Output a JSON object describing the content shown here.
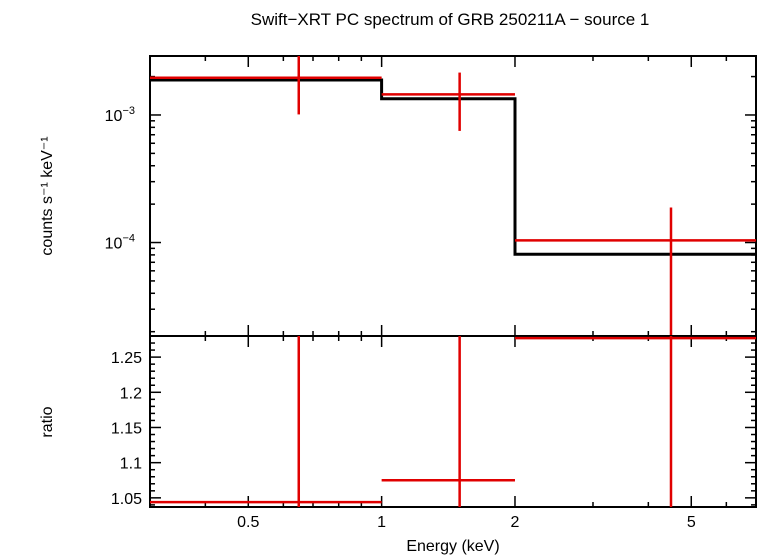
{
  "chart_data": [
    {
      "type": "line",
      "title": "Swift−XRT PC spectrum of GRB 250211A − source 1",
      "ylabel_html": "counts s⁻¹ keV⁻¹",
      "ylabel": "counts s⁻¹ keV⁻¹",
      "xscale": "log",
      "yscale": "log",
      "xlim": [
        0.3,
        7.0
      ],
      "ylim": [
        1.85e-05,
        0.0029
      ],
      "ytick_labels": [
        {
          "value": 0.001,
          "base": "10",
          "exp": "−3"
        },
        {
          "value": 0.0001,
          "base": "10",
          "exp": "−4"
        }
      ],
      "series": [
        {
          "role": "model",
          "color": "#000000",
          "steps": [
            {
              "x0": 0.3,
              "x1": 1.0,
              "y": 0.00188
            },
            {
              "x0": 1.0,
              "x1": 2.0,
              "y": 0.00134
            },
            {
              "x0": 2.0,
              "x1": 7.0,
              "y": 8.1e-05
            }
          ]
        },
        {
          "role": "data",
          "color": "#e00000",
          "points": [
            {
              "x": 0.65,
              "xlo": 0.3,
              "xhi": 1.0,
              "y": 0.00196,
              "ylo": 0.00101,
              "yhi": 0.0029
            },
            {
              "x": 1.5,
              "xlo": 1.0,
              "xhi": 2.0,
              "y": 0.00145,
              "ylo": 0.00075,
              "yhi": 0.00215
            },
            {
              "x": 4.5,
              "xlo": 2.0,
              "xhi": 7.0,
              "y": 0.000104,
              "ylo": 1.85e-05,
              "yhi": 0.000188
            }
          ]
        }
      ]
    },
    {
      "type": "scatter",
      "ylabel": "ratio",
      "xlabel": "Energy (keV)",
      "xscale": "log",
      "xlim": [
        0.3,
        7.0
      ],
      "ylim": [
        1.037,
        1.28
      ],
      "yticks": [
        1.05,
        1.1,
        1.15,
        1.2,
        1.25
      ],
      "ytick_labels": [
        "1.05",
        "1.1",
        "1.15",
        "1.2",
        "1.25"
      ],
      "xticks": [
        0.5,
        1,
        2,
        5
      ],
      "xtick_labels": [
        "0.5",
        "1",
        "2",
        "5"
      ],
      "series": [
        {
          "role": "ratio",
          "color": "#e00000",
          "points": [
            {
              "x": 0.65,
              "xlo": 0.3,
              "xhi": 1.0,
              "y": 1.044,
              "ylo": 1.037,
              "yhi": 1.28
            },
            {
              "x": 1.5,
              "xlo": 1.0,
              "xhi": 2.0,
              "y": 1.075,
              "ylo": 1.037,
              "yhi": 1.28
            },
            {
              "x": 4.5,
              "xlo": 2.0,
              "xhi": 7.0,
              "y": 1.277,
              "ylo": 1.037,
              "yhi": 1.28
            }
          ]
        }
      ]
    }
  ]
}
